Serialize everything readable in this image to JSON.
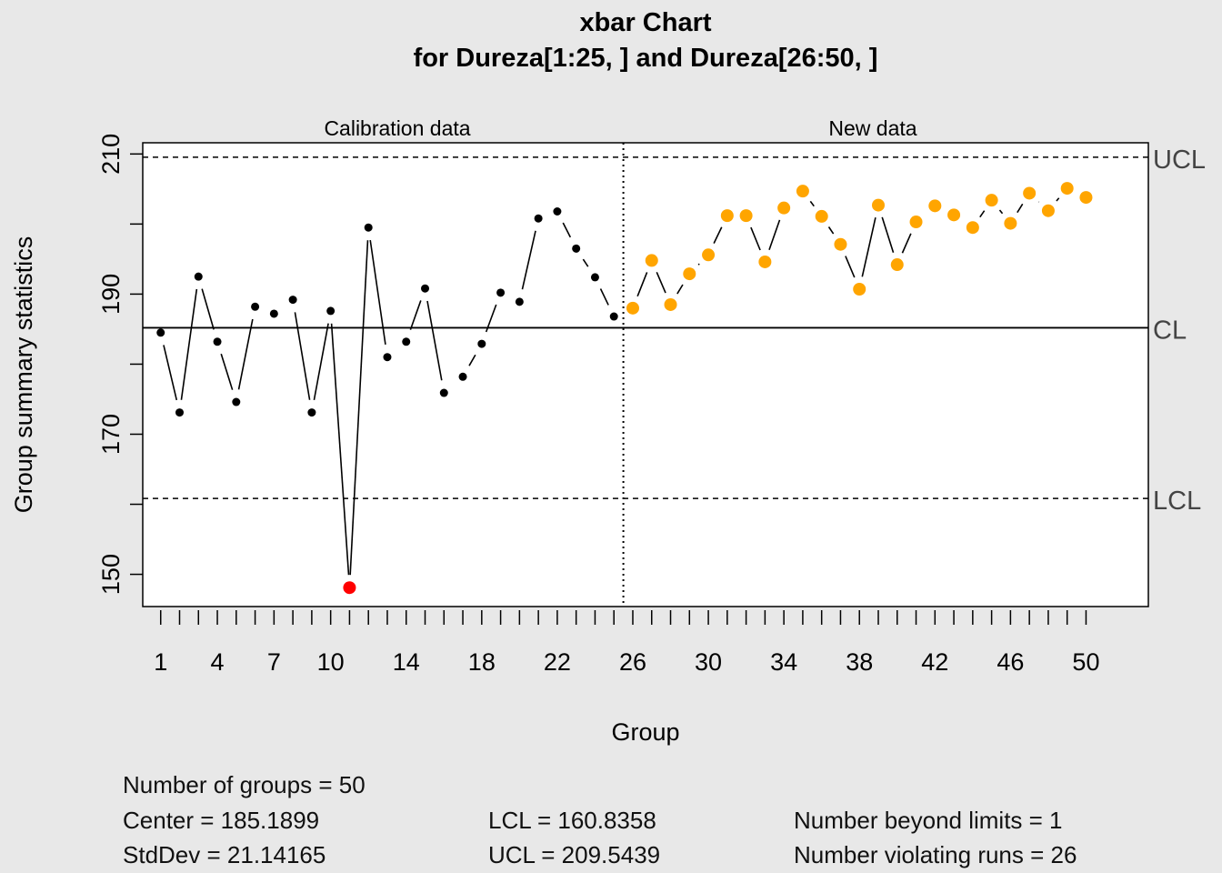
{
  "chart_data": {
    "type": "line",
    "title": "xbar Chart",
    "subtitle": "for Dureza[1:25, ] and Dureza[26:50, ]",
    "xlabel": "Group",
    "ylabel": "Group summary statistics",
    "section_labels": [
      "Calibration data",
      "New data"
    ],
    "x": [
      1,
      2,
      3,
      4,
      5,
      6,
      7,
      8,
      9,
      10,
      11,
      12,
      13,
      14,
      15,
      16,
      17,
      18,
      19,
      20,
      21,
      22,
      23,
      24,
      25,
      26,
      27,
      28,
      29,
      30,
      31,
      32,
      33,
      34,
      35,
      36,
      37,
      38,
      39,
      40,
      41,
      42,
      43,
      44,
      45,
      46,
      47,
      48,
      49,
      50
    ],
    "values": [
      184.5,
      173.1,
      192.5,
      183.2,
      174.6,
      188.2,
      187.2,
      189.2,
      173.1,
      187.6,
      148.1,
      199.5,
      181.0,
      183.2,
      190.8,
      175.9,
      178.2,
      182.9,
      190.2,
      188.9,
      200.8,
      201.8,
      196.5,
      192.4,
      186.8,
      188.0,
      194.8,
      188.5,
      192.9,
      195.6,
      201.2,
      201.2,
      194.6,
      202.3,
      204.7,
      201.1,
      197.1,
      190.7,
      202.7,
      194.2,
      200.3,
      202.6,
      201.3,
      199.5,
      203.4,
      200.1,
      204.4,
      201.9,
      205.1,
      203.8
    ],
    "point_colors": {
      "calibration": "#000000",
      "new": "#ffa500",
      "beyond_limits": "#ff0000"
    },
    "calibration_groups": 25,
    "beyond_limits_index": [
      11
    ],
    "center": 185.1899,
    "lcl": 160.8358,
    "ucl": 209.5439,
    "limit_labels": {
      "ucl": "UCL",
      "cl": "CL",
      "lcl": "LCL"
    },
    "ylim": [
      145.4,
      211.6
    ],
    "xlim": [
      0.05,
      53.3
    ],
    "y_ticks": [
      150,
      160,
      170,
      180,
      190,
      200,
      210
    ],
    "y_tick_labels": [
      "150",
      "",
      "170",
      "",
      "190",
      "",
      "210"
    ],
    "x_ticks": [
      1,
      2,
      3,
      4,
      5,
      6,
      7,
      8,
      9,
      10,
      11,
      12,
      13,
      14,
      15,
      16,
      17,
      18,
      19,
      20,
      21,
      22,
      23,
      24,
      25,
      26,
      27,
      28,
      29,
      30,
      31,
      32,
      33,
      34,
      35,
      36,
      37,
      38,
      39,
      40,
      41,
      42,
      43,
      44,
      45,
      46,
      47,
      48,
      49,
      50
    ],
    "x_tick_labels": [
      "1",
      "4",
      "7",
      "10",
      "14",
      "18",
      "22",
      "26",
      "30",
      "34",
      "38",
      "42",
      "46",
      "50"
    ],
    "x_tick_label_positions": [
      1,
      4,
      7,
      10,
      14,
      18,
      22,
      26,
      30,
      34,
      38,
      42,
      46,
      50
    ],
    "grid": false
  },
  "stats": {
    "groups": "Number of groups = 50",
    "center": "Center = 185.1899",
    "stddev": "StdDev = 21.14165",
    "lcl": "LCL = 160.8358",
    "ucl": "UCL = 209.5439",
    "beyond": "Number beyond limits = 1",
    "violating": "Number violating runs = 26"
  }
}
